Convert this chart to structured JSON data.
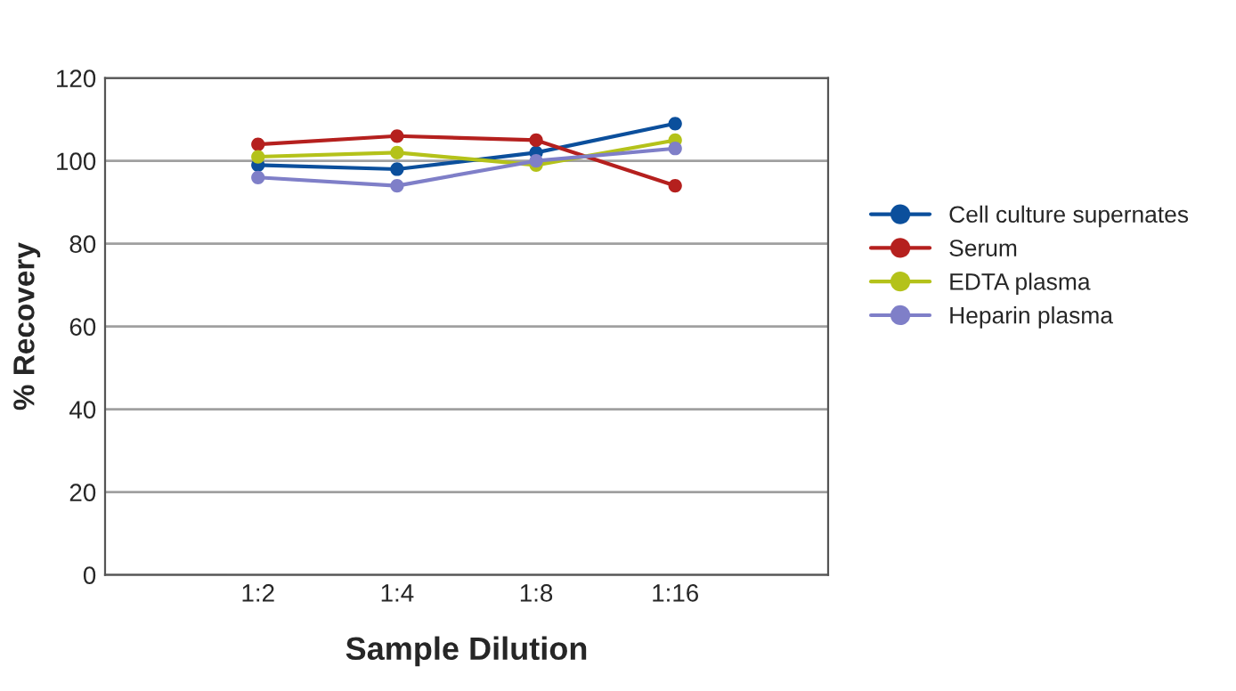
{
  "chart_data": {
    "type": "line",
    "xlabel": "Sample Dilution",
    "ylabel": "% Recovery",
    "categories": [
      "1:2",
      "1:4",
      "1:8",
      "1:16"
    ],
    "series": [
      {
        "name": "Cell culture supernates",
        "color": "#0b4f9c",
        "values": [
          99,
          98,
          102,
          109
        ]
      },
      {
        "name": "Serum",
        "color": "#b5201e",
        "values": [
          104,
          106,
          105,
          94
        ]
      },
      {
        "name": "EDTA plasma",
        "color": "#b4c21a",
        "values": [
          101,
          102,
          99,
          105
        ]
      },
      {
        "name": "Heparin plasma",
        "color": "#7f7fc8",
        "values": [
          96,
          94,
          100,
          103
        ]
      }
    ],
    "ylim": [
      0,
      120
    ],
    "yticks": [
      0,
      20,
      40,
      60,
      80,
      100,
      120
    ],
    "grid": "y",
    "legend": "right",
    "marker": "circle",
    "line_style": "solid"
  }
}
